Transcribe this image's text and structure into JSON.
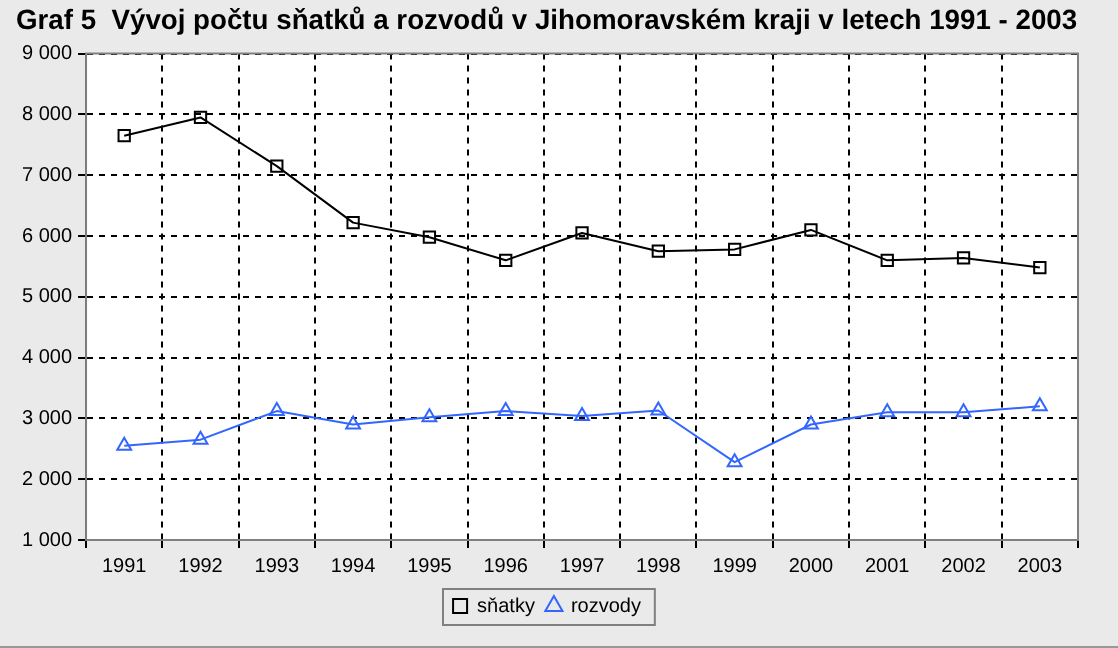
{
  "chart_data": {
    "type": "line",
    "title": "Graf 5  Vývoj počtu sňatků a rozvodů v Jihomoravském kraji v letech 1991 - 2003",
    "categories": [
      "1991",
      "1992",
      "1993",
      "1994",
      "1995",
      "1996",
      "1997",
      "1998",
      "1999",
      "2000",
      "2001",
      "2002",
      "2003"
    ],
    "series": [
      {
        "name": "sňatky",
        "color": "#000000",
        "marker": "square",
        "values": [
          7650,
          7950,
          7150,
          6220,
          5980,
          5600,
          6050,
          5750,
          5780,
          6100,
          5600,
          5640,
          5480
        ]
      },
      {
        "name": "rozvody",
        "color": "#3366ff",
        "marker": "triangle",
        "values": [
          2550,
          2650,
          3120,
          2900,
          3020,
          3120,
          3040,
          3130,
          2280,
          2900,
          3100,
          3100,
          3200
        ]
      }
    ],
    "ylim": [
      1000,
      9000
    ],
    "yticks": [
      {
        "value": 1000,
        "label": "1 000"
      },
      {
        "value": 2000,
        "label": "2 000"
      },
      {
        "value": 3000,
        "label": "3 000"
      },
      {
        "value": 4000,
        "label": "4 000"
      },
      {
        "value": 5000,
        "label": "5 000"
      },
      {
        "value": 6000,
        "label": "6 000"
      },
      {
        "value": 7000,
        "label": "7 000"
      },
      {
        "value": 8000,
        "label": "8 000"
      },
      {
        "value": 9000,
        "label": "9 000"
      }
    ],
    "grid": true,
    "legend": "bottom",
    "line_style": "solid"
  }
}
